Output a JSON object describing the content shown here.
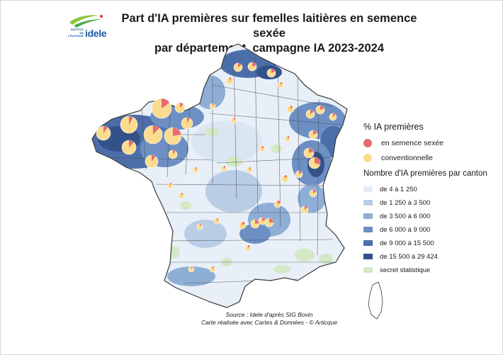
{
  "logo": {
    "line1": "INSTITUT DE",
    "line2": "L'ÉLEVAGE",
    "word": "idele"
  },
  "title": {
    "line1": "Part d'IA premières sur femelles laitières en semence sexée",
    "line2": "par département, campagne IA 2023-2024"
  },
  "legend": {
    "pie_title": "% IA premières",
    "pie_items": [
      {
        "label": "en semence sexée",
        "color": "#e66b74"
      },
      {
        "label": "conventionnelle",
        "color": "#fbdc8e"
      }
    ],
    "choropleth_title": "Nombre d'IA premières par canton",
    "classes": [
      {
        "label": "de 4 à 1 250",
        "color": "#e4edf7"
      },
      {
        "label": "de 1 250 à 3 500",
        "color": "#b9cee6"
      },
      {
        "label": "de 3 500 à 6 000",
        "color": "#8eaed6"
      },
      {
        "label": "de 6 000 à 9 000",
        "color": "#6d8fc3"
      },
      {
        "label": "de 9 000 à 15 500",
        "color": "#4c6ea8"
      },
      {
        "label": "de 15 500 à 29 424",
        "color": "#33518a"
      }
    ],
    "secret_label": "secret statistique",
    "secret_color": "#d3e8c6"
  },
  "source": {
    "line1": "Source : Idele d'après SIG Bovin",
    "line2": "Carte réalisée avec Cartes & Données - © Articque"
  }
}
